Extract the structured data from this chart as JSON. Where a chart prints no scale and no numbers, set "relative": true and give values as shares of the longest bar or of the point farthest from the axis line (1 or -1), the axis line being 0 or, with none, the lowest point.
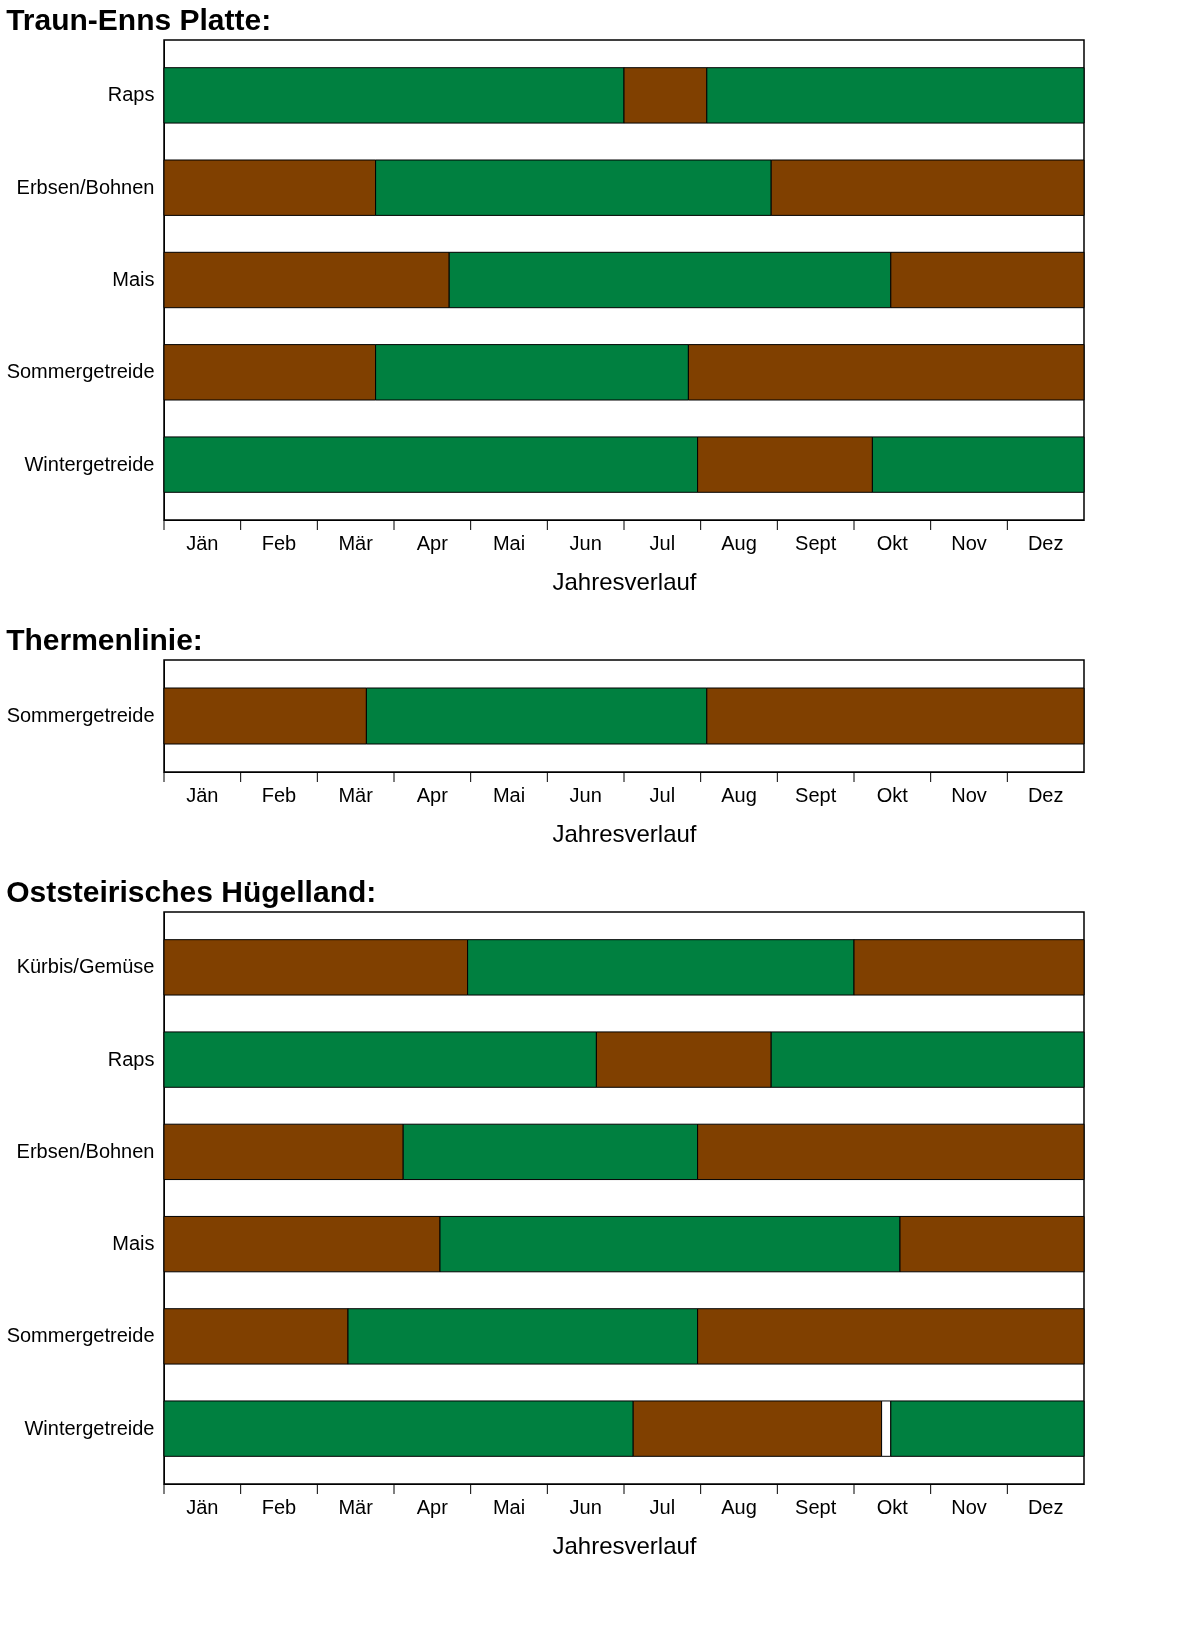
{
  "chart_data": [
    {
      "type": "bar",
      "orientation": "horizontal",
      "stacked": true,
      "relative": true,
      "title": "Traun-Enns Platte:",
      "xlabel": "Jahresverlauf",
      "annotations": [
        "Jän",
        "Feb",
        "Mär",
        "Apr",
        "Mai",
        "Jun",
        "Jul",
        "Aug",
        "Sept",
        "Okt",
        "Nov",
        "Dez"
      ],
      "categories": [
        "Raps",
        "Erbsen/Bohnen",
        "Mais",
        "Sommergetreide",
        "Wintergetreide"
      ],
      "series": [
        {
          "colors": [
            "#008040",
            "#804000",
            "#804000",
            "#804000",
            "#008040"
          ],
          "values": [
            0.5,
            0.23,
            0.31,
            0.23,
            0.58
          ]
        },
        {
          "colors": [
            "#804000",
            "#008040",
            "#008040",
            "#008040",
            "#804000"
          ],
          "values": [
            0.09,
            0.43,
            0.48,
            0.34,
            0.19
          ]
        },
        {
          "colors": [
            "#008040",
            "#804000",
            "#804000",
            "#804000",
            "#008040"
          ],
          "values": [
            0.41,
            0.34,
            0.21,
            0.43,
            0.23
          ]
        }
      ]
    },
    {
      "type": "bar",
      "orientation": "horizontal",
      "stacked": true,
      "relative": true,
      "title": "Thermenlinie:",
      "xlabel": "Jahresverlauf",
      "annotations": [
        "Jän",
        "Feb",
        "Mär",
        "Apr",
        "Mai",
        "Jun",
        "Jul",
        "Aug",
        "Sept",
        "Okt",
        "Nov",
        "Dez"
      ],
      "categories": [
        "Sommergetreide"
      ],
      "series": [
        {
          "colors": [
            "#804000"
          ],
          "values": [
            0.22
          ]
        },
        {
          "colors": [
            "#008040"
          ],
          "values": [
            0.37
          ]
        },
        {
          "colors": [
            "#804000"
          ],
          "values": [
            0.41
          ]
        }
      ]
    },
    {
      "type": "bar",
      "orientation": "horizontal",
      "stacked": true,
      "relative": true,
      "title": "Oststeirisches Hügelland:",
      "xlabel": "Jahresverlauf",
      "annotations": [
        "Jän",
        "Feb",
        "Mär",
        "Apr",
        "Mai",
        "Jun",
        "Jul",
        "Aug",
        "Sept",
        "Okt",
        "Nov",
        "Dez"
      ],
      "categories": [
        "Kürbis/Gemüse",
        "Raps",
        "Erbsen/Bohnen",
        "Mais",
        "Sommergetreide",
        "Wintergetreide"
      ],
      "series": [
        {
          "colors": [
            "#804000",
            "#008040",
            "#804000",
            "#804000",
            "#804000",
            "#008040"
          ],
          "values": [
            0.33,
            0.47,
            0.26,
            0.3,
            0.2,
            0.51
          ]
        },
        {
          "colors": [
            "#008040",
            "#804000",
            "#008040",
            "#008040",
            "#008040",
            "#804000"
          ],
          "values": [
            0.42,
            0.19,
            0.32,
            0.5,
            0.38,
            0.27
          ]
        },
        {
          "colors": [
            "#804000",
            "#008040",
            "#804000",
            "#804000",
            "#804000",
            "#ffffff"
          ],
          "values": [
            0.25,
            0.34,
            0.42,
            0.2,
            0.42,
            0.01
          ]
        },
        {
          "colors": [
            null,
            null,
            null,
            null,
            null,
            "#008040"
          ],
          "values": [
            null,
            null,
            null,
            null,
            null,
            0.21
          ]
        }
      ]
    }
  ]
}
